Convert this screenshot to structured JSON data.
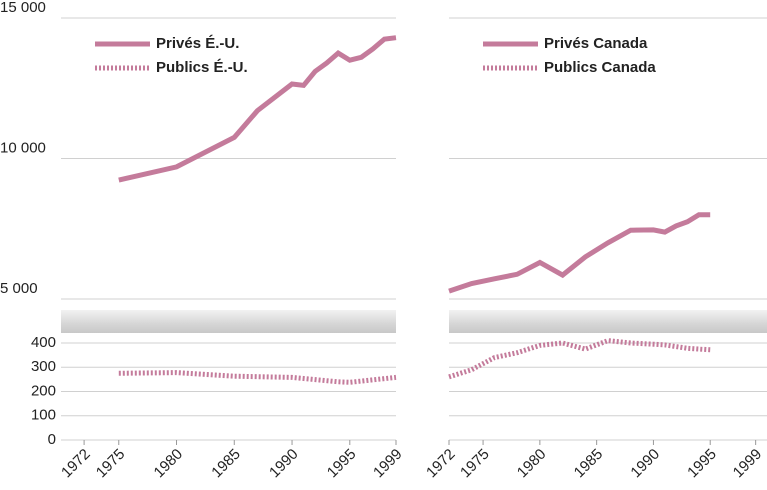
{
  "chart_data": [
    {
      "type": "line",
      "xlim": [
        1970,
        1999
      ],
      "xticks": [
        1972,
        1975,
        1980,
        1985,
        1990,
        1995,
        1999
      ],
      "ylim": [
        5000,
        15000
      ],
      "yticks": [
        {
          "value": 5000,
          "label": "5 000"
        },
        {
          "value": 10000,
          "label": "10 000"
        },
        {
          "value": 15000,
          "label": "15 000"
        }
      ],
      "y2lim": [
        0,
        400
      ],
      "y2ticks": [
        0,
        100,
        200,
        300,
        400
      ],
      "grid": true,
      "legend": "upper left",
      "series": [
        {
          "name": "Privés É.-U.",
          "color": "#c47b9b",
          "linestyle": "solid",
          "x": [
            1975,
            1980,
            1985,
            1987,
            1990,
            1991,
            1992,
            1993,
            1994,
            1995,
            1996,
            1997,
            1998,
            1999
          ],
          "values": [
            9230,
            9700,
            10750,
            11700,
            12650,
            12600,
            13100,
            13400,
            13750,
            13500,
            13600,
            13900,
            14250,
            14300
          ]
        },
        {
          "name": "Publics É.-U.",
          "color": "#c47b9b",
          "linestyle": "dotted",
          "axis": "y2",
          "x": [
            1975,
            1980,
            1985,
            1990,
            1994,
            1995,
            1999
          ],
          "values": [
            275,
            278,
            263,
            258,
            240,
            238,
            258
          ]
        }
      ]
    },
    {
      "type": "line",
      "xlim": [
        1972,
        2000
      ],
      "xticks": [
        1972,
        1975,
        1980,
        1985,
        1990,
        1995,
        1999
      ],
      "ylim": [
        5000,
        15000
      ],
      "y2lim": [
        0,
        400
      ],
      "grid": true,
      "legend": "upper left",
      "series": [
        {
          "name": "Privés Canada",
          "color": "#c47b9b",
          "linestyle": "solid",
          "x": [
            1972,
            1974,
            1976,
            1978,
            1980,
            1982,
            1984,
            1986,
            1988,
            1990,
            1991,
            1992,
            1993,
            1994,
            1995
          ],
          "values": [
            5280,
            5550,
            5720,
            5880,
            6300,
            5850,
            6500,
            7000,
            7450,
            7460,
            7380,
            7600,
            7750,
            8000,
            8000
          ]
        },
        {
          "name": "Publics Canada",
          "color": "#c47b9b",
          "linestyle": "dotted",
          "axis": "y2",
          "x": [
            1972,
            1974,
            1976,
            1978,
            1980,
            1982,
            1984,
            1986,
            1988,
            1990,
            1991,
            1992,
            1993,
            1994,
            1995
          ],
          "values": [
            260,
            290,
            340,
            360,
            390,
            400,
            375,
            410,
            400,
            395,
            392,
            385,
            378,
            375,
            372
          ]
        }
      ]
    }
  ]
}
